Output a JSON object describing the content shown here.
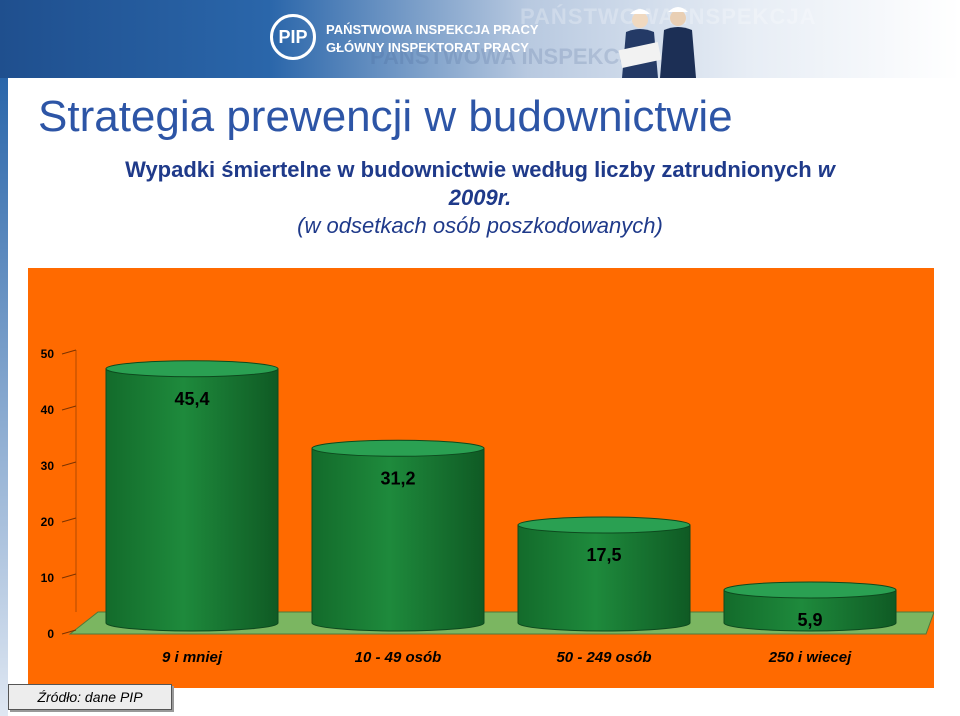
{
  "header": {
    "org_line1": "PAŃSTWOWA INSPEKCJA PRACY",
    "org_line2": "GŁÓWNY INSPEKTORAT PRACY",
    "logo_text": "PIP",
    "watermark_text": "PAŃSTWOWA INSPEKCJA",
    "watermark_text2": "PAŃSTWOWA INSPEKCJA"
  },
  "slide": {
    "title": "Strategia prewencji w budownictwie",
    "subtitle_line1": "Wypadki śmiertelne w budownictwie według liczby zatrudnionych",
    "subtitle_line1_tail": "w",
    "subtitle_line2": "2009r.",
    "subtitle_line3": "(w odsetkach osób poszkodowanych)",
    "source": "Źródło: dane PIP"
  },
  "colors": {
    "title": "#2d55a6",
    "plot_background": "#ff6a00",
    "bar": "#1e8a3c",
    "floor": "#7bb661"
  },
  "chart_data": {
    "type": "bar",
    "categories": [
      "9 i mniej",
      "10 - 49 osób",
      "50 - 249 osób",
      "250 i wiecej"
    ],
    "values": [
      45.4,
      31.2,
      17.5,
      5.9
    ],
    "value_labels": [
      "45,4",
      "31,2",
      "17,5",
      "5,9"
    ],
    "yticks": [
      "0",
      "10",
      "20",
      "30",
      "40",
      "50"
    ],
    "ylim": [
      0,
      50
    ],
    "grid": false,
    "legend": "none",
    "style": "3d-cylinder"
  }
}
